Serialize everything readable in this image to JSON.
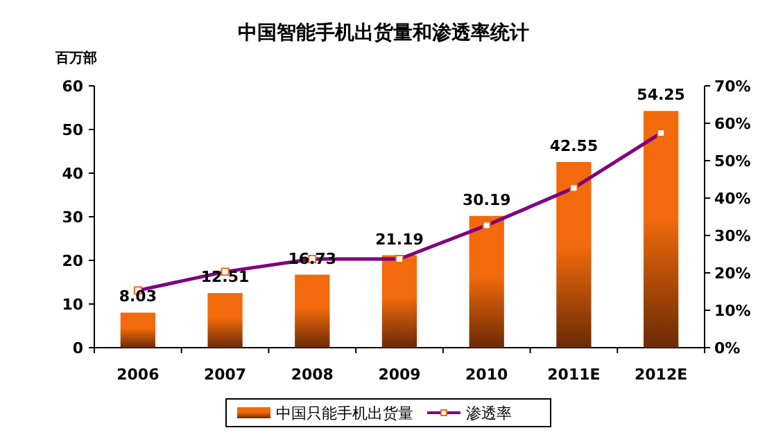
{
  "chart_data": {
    "type": "bar",
    "title": "中国智能手机出货量和渗透率统计",
    "ylabel": "百万部",
    "categories": [
      "2006",
      "2007",
      "2008",
      "2009",
      "2010",
      "2011E",
      "2012E"
    ],
    "series": [
      {
        "name": "中国只能手机出货量",
        "color": "#f26a0c",
        "values": [
          8.03,
          12.51,
          16.73,
          21.19,
          30.19,
          42.55,
          54.25
        ],
        "value_labels": [
          "8.03",
          "12.51",
          "16.73",
          "21.19",
          "30.19",
          "42.55",
          "54.25"
        ]
      },
      {
        "name": "渗透率",
        "type": "line",
        "axis": "y2",
        "color": "#800080",
        "marker": "square",
        "values": [
          15.3,
          20.3,
          23.7,
          23.7,
          32.7,
          42.7,
          57.4
        ]
      }
    ],
    "ylim": [
      0,
      60
    ],
    "yticks": [
      0,
      10,
      20,
      30,
      40,
      50,
      60
    ],
    "y2lim": [
      0,
      70
    ],
    "y2ticks": [
      {
        "value": 0,
        "label": "0%"
      },
      {
        "value": 10,
        "label": "10%"
      },
      {
        "value": 20,
        "label": "20%"
      },
      {
        "value": 30,
        "label": "30%"
      },
      {
        "value": 40,
        "label": "40%"
      },
      {
        "value": 50,
        "label": "50%"
      },
      {
        "value": 60,
        "label": "60%"
      },
      {
        "value": 70,
        "label": "70%"
      }
    ],
    "legend": "bottom"
  }
}
